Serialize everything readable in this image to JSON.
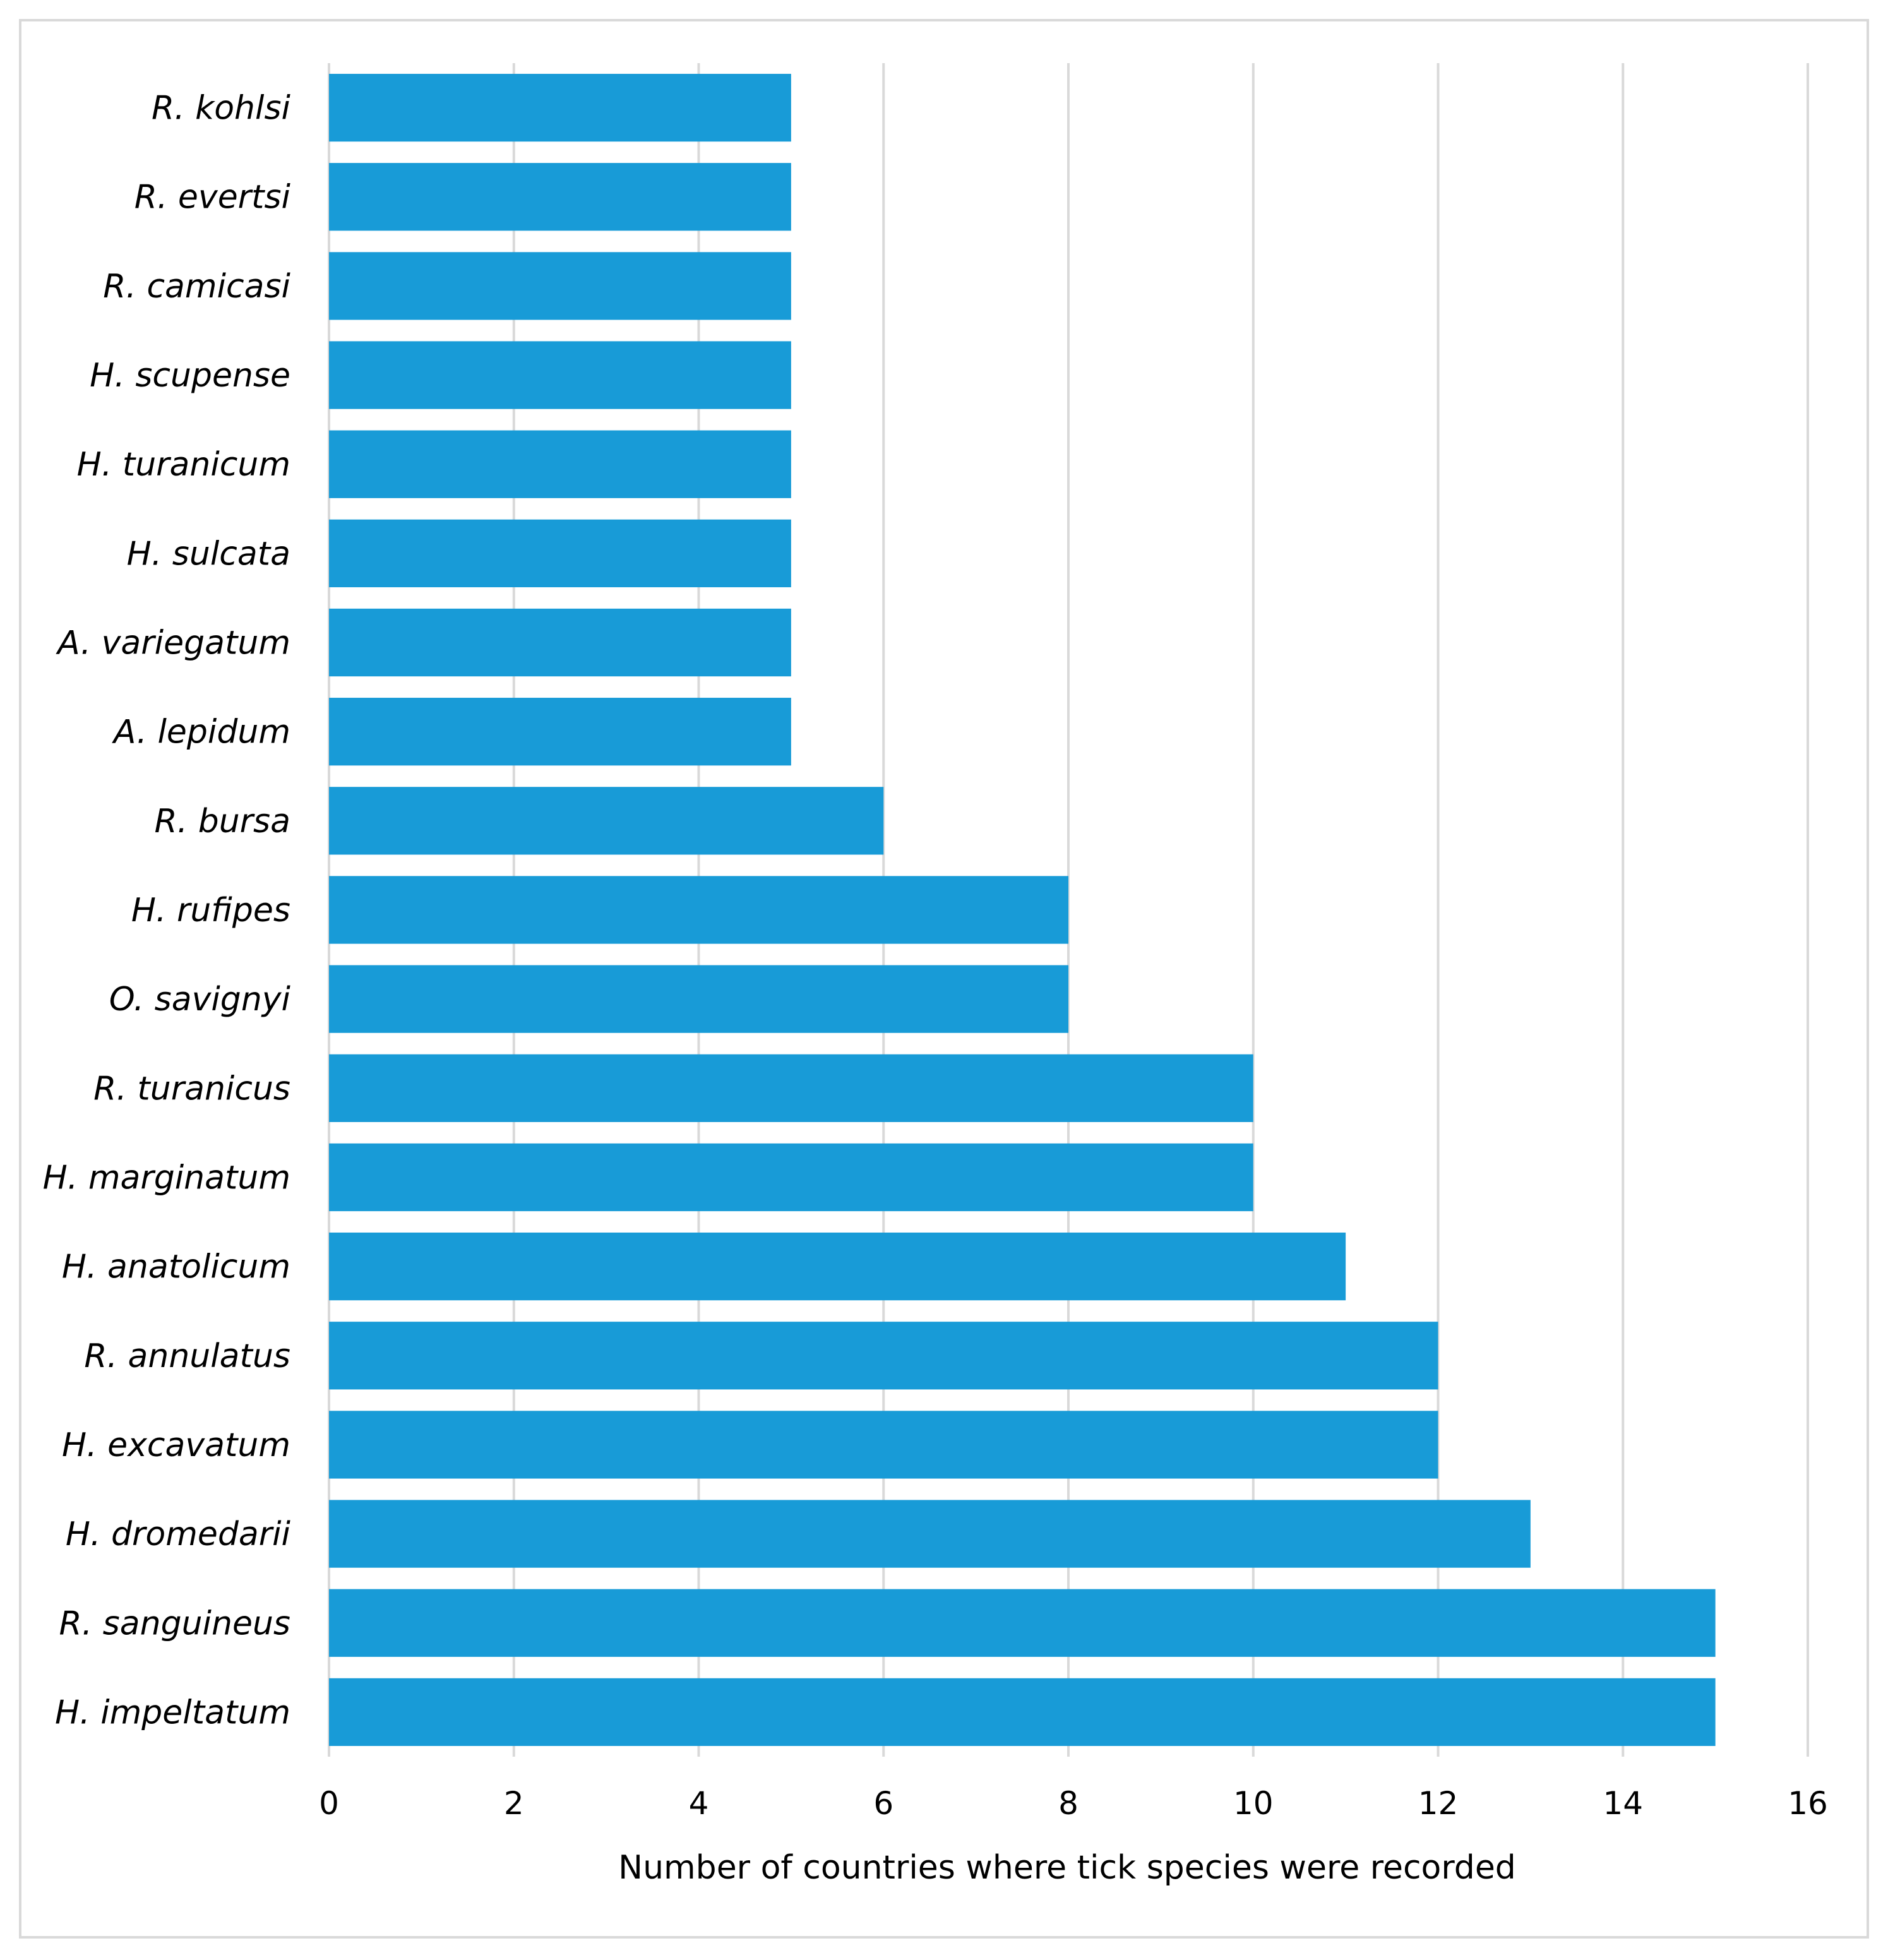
{
  "chart_data": {
    "type": "bar",
    "orientation": "horizontal",
    "categories": [
      "R. kohlsi",
      "R. evertsi",
      "R. camicasi",
      "H. scupense",
      "H. turanicum",
      "H. sulcata",
      "A. variegatum",
      "A. lepidum",
      "R. bursa",
      "H. rufipes",
      "O. savignyi",
      "R. turanicus",
      "H. marginatum",
      "H. anatolicum",
      "R. annulatus",
      "H. excavatum",
      "H. dromedarii",
      "R. sanguineus",
      "H. impeltatum"
    ],
    "values": [
      5,
      5,
      5,
      5,
      5,
      5,
      5,
      5,
      6,
      8,
      8,
      10,
      10,
      11,
      12,
      12,
      13,
      15,
      15
    ],
    "xlabel": "Number of countries where tick species were recorded",
    "ylabel": "",
    "xlim": [
      0,
      16
    ],
    "xticks": [
      "0",
      "2",
      "4",
      "6",
      "8",
      "10",
      "12",
      "14",
      "16"
    ],
    "grid": "vertical",
    "legend": "none",
    "bar_color": "#189bd7",
    "grid_color": "#d9d9d9"
  }
}
